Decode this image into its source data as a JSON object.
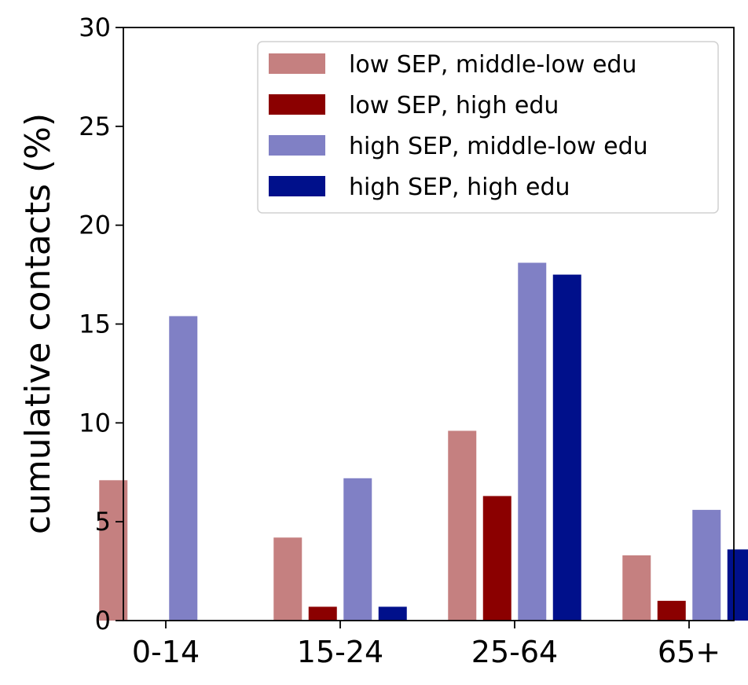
{
  "chart_data": {
    "type": "bar",
    "title": "",
    "xlabel": "",
    "ylabel": "cumulative contacts (%)",
    "categories": [
      "0-14",
      "15-24",
      "25-64",
      "65+"
    ],
    "ylim": [
      0,
      30
    ],
    "yticks": [
      "0",
      "5",
      "10",
      "15",
      "20",
      "25",
      "30"
    ],
    "legend_position": "top-right",
    "grid": false,
    "series": [
      {
        "name": "low SEP, middle-low edu",
        "color": "#c58080",
        "values": [
          7.1,
          4.2,
          9.6,
          3.3
        ]
      },
      {
        "name": "low SEP, high edu",
        "color": "#8b0000",
        "values": [
          null,
          0.7,
          6.3,
          1.0
        ]
      },
      {
        "name": "high SEP, middle-low edu",
        "color": "#8080c5",
        "values": [
          15.4,
          7.2,
          18.1,
          5.6
        ]
      },
      {
        "name": "high SEP, high edu",
        "color": "#00108b",
        "values": [
          null,
          0.7,
          17.5,
          3.6
        ]
      }
    ]
  }
}
